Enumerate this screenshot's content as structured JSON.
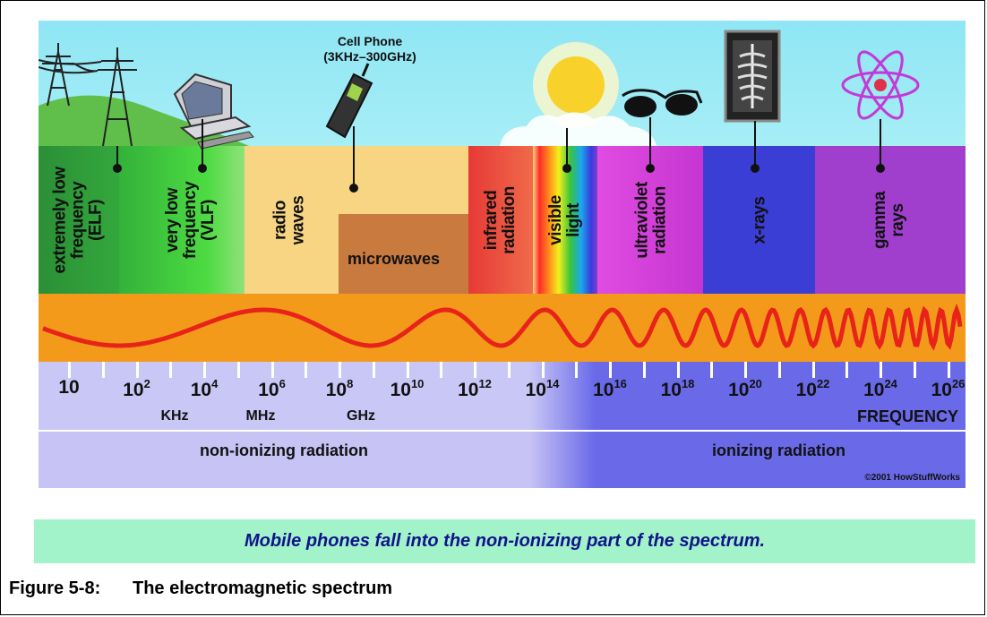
{
  "diagram": {
    "cell_phone": {
      "title": "Cell Phone",
      "range": "(3KHz–300GHz)"
    },
    "bands": [
      {
        "label": "extremely low\nfrequency\n(ELF)"
      },
      {
        "label": "very low\nfrequency\n(VLF)"
      },
      {
        "label": "radio\nwaves"
      },
      {
        "label": "microwaves"
      },
      {
        "label": "infrared\nradiation"
      },
      {
        "label": "visible\nlight"
      },
      {
        "label": "ultraviolet\nradiation"
      },
      {
        "label": "x-rays"
      },
      {
        "label": "gamma\nrays"
      }
    ],
    "frequency_scale": {
      "base": "10",
      "exponents": [
        "",
        "2",
        "4",
        "6",
        "8",
        "10",
        "12",
        "14",
        "16",
        "18",
        "20",
        "22",
        "24",
        "26"
      ],
      "units": [
        "KHz",
        "MHz",
        "GHz"
      ],
      "axis_label": "FREQUENCY"
    },
    "radiation": {
      "non_ionizing": "non-ionizing radiation",
      "ionizing": "ionizing radiation"
    },
    "copyright": "©2001 HowStuffWorks"
  },
  "caption": "Mobile phones fall into the non-ionizing part of the spectrum.",
  "figure": {
    "number": "Figure 5-8:",
    "title": "The electromagnetic spectrum"
  },
  "colors": {
    "sky": "#9fe9f2",
    "elf": "#2f9a3a",
    "vlf": "#38c83a",
    "radio": "#f7d27e",
    "microwave": "#c97a3e",
    "infrared": "#e8413a",
    "ultraviolet": "#d43bd8",
    "xray": "#3d3fd6",
    "gamma": "#a23fd0",
    "wave_strip": "#f49a1a",
    "wave": "#e8231a",
    "caption_bg": "#a2f3c9",
    "caption_text": "#12128c"
  },
  "icons": [
    "power-tower-icon",
    "computer-icon",
    "cell-phone-icon",
    "sun-icon",
    "sunglasses-icon",
    "xray-film-icon",
    "atom-icon"
  ]
}
